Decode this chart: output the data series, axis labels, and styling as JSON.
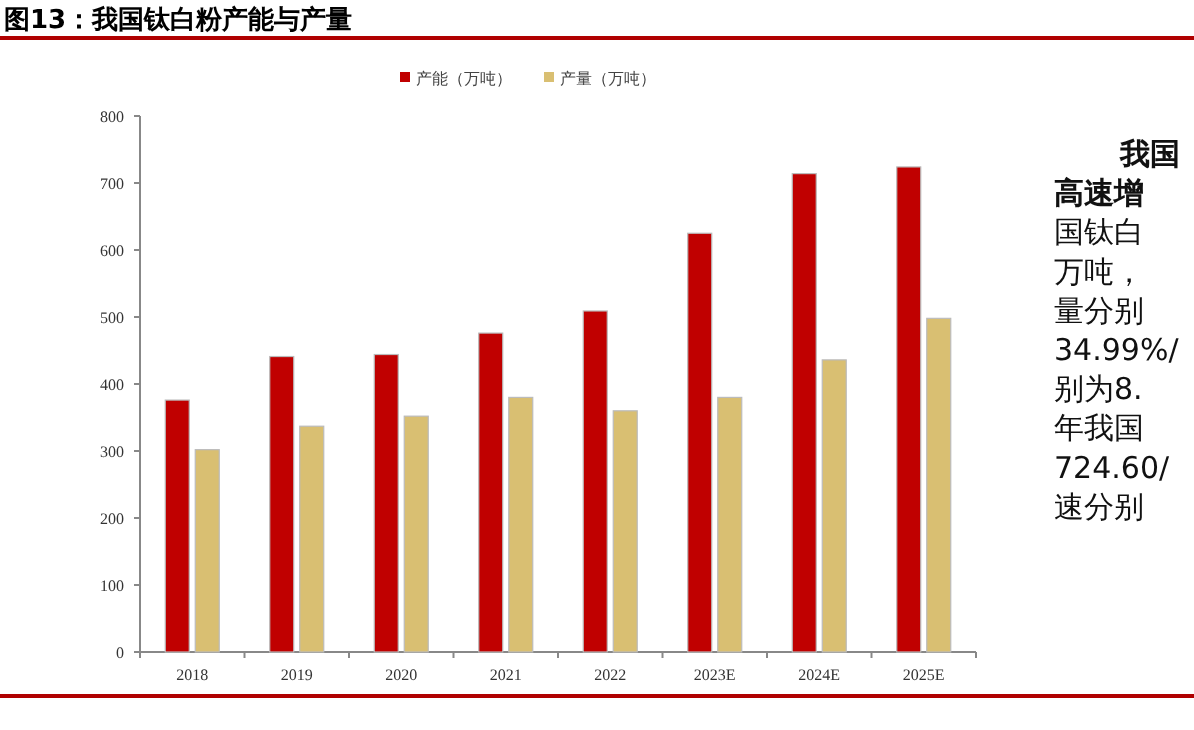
{
  "chart_data": {
    "type": "bar",
    "title": "图13：我国钛白粉产能与产量",
    "categories": [
      "2018",
      "2019",
      "2020",
      "2021",
      "2022",
      "2023E",
      "2024E",
      "2025E"
    ],
    "series": [
      {
        "name": "产能（万吨）",
        "color": "#c00000",
        "values": [
          376,
          441,
          444,
          476,
          509,
          625,
          714,
          724
        ]
      },
      {
        "name": "产量（万吨）",
        "color": "#d9bf72",
        "values": [
          302,
          337,
          352,
          380,
          360,
          380,
          436,
          498
        ]
      }
    ],
    "ylim": [
      0,
      800
    ],
    "yticks": [
      0,
      100,
      200,
      300,
      400,
      500,
      600,
      700,
      800
    ],
    "grid": false,
    "legend": "top",
    "annotations": [
      "我国",
      "高速增",
      "国钛白",
      "万吨，",
      "量分别",
      "34.99%/",
      "别为8.",
      "年我国",
      "724.60/",
      "速分别"
    ]
  }
}
